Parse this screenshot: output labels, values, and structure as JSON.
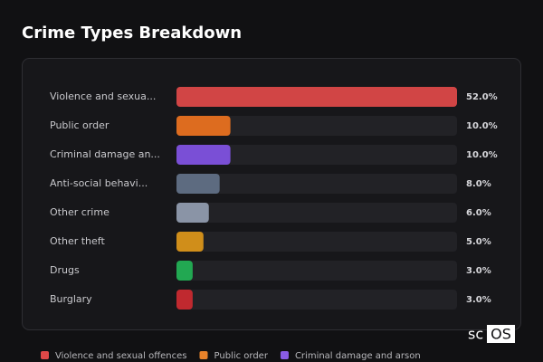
{
  "chart_data": {
    "type": "bar",
    "orientation": "horizontal",
    "title": "Crime Types Breakdown",
    "categories": [
      "Violence and sexua...",
      "Public order",
      "Criminal damage an...",
      "Anti-social behavi...",
      "Other crime",
      "Other theft",
      "Drugs",
      "Burglary"
    ],
    "values": [
      52,
      10,
      10,
      8,
      6,
      5,
      3,
      3
    ],
    "value_labels": [
      "52.0%",
      "10.0%",
      "10.0%",
      "8.0%",
      "6.0%",
      "5.0%",
      "3.0%",
      "3.0%"
    ],
    "colors": [
      "#d14545",
      "#dd6c1f",
      "#7a4fd6",
      "#5d6b80",
      "#8a94a6",
      "#d08e1a",
      "#22a852",
      "#c0292f"
    ],
    "legend": [
      {
        "name": "Violence and sexual offences",
        "color": "#e04848"
      },
      {
        "name": "Public order",
        "color": "#e8822a"
      },
      {
        "name": "Criminal damage and arson",
        "color": "#8a5ce6"
      }
    ]
  },
  "brand": {
    "prefix": "sc",
    "boxed": "OS"
  }
}
